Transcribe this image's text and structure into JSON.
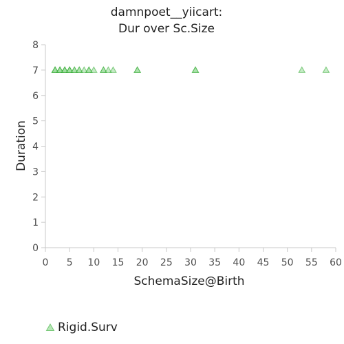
{
  "chart_data": {
    "type": "scatter",
    "title_lines": [
      "damnpoet__yiicart:",
      "Dur over Sc.Size"
    ],
    "xlabel": "SchemaSize@Birth",
    "ylabel": "Duration",
    "xlim": [
      0,
      60
    ],
    "ylim": [
      0,
      8
    ],
    "xticks": [
      0,
      5,
      10,
      15,
      20,
      25,
      30,
      35,
      40,
      45,
      50,
      55,
      60
    ],
    "yticks": [
      0,
      1,
      2,
      3,
      4,
      5,
      6,
      7,
      8
    ],
    "grid": false,
    "legend_position": "bottom-left",
    "series": [
      {
        "name": "Rigid.Surv",
        "marker": "triangle",
        "color": "#33aa33",
        "points": [
          {
            "x": 2,
            "y": 7
          },
          {
            "x": 2,
            "y": 7
          },
          {
            "x": 2,
            "y": 7
          },
          {
            "x": 3,
            "y": 7
          },
          {
            "x": 3,
            "y": 7
          },
          {
            "x": 3,
            "y": 7
          },
          {
            "x": 4,
            "y": 7
          },
          {
            "x": 4,
            "y": 7
          },
          {
            "x": 4,
            "y": 7
          },
          {
            "x": 5,
            "y": 7
          },
          {
            "x": 5,
            "y": 7
          },
          {
            "x": 5,
            "y": 7
          },
          {
            "x": 6,
            "y": 7
          },
          {
            "x": 6,
            "y": 7
          },
          {
            "x": 7,
            "y": 7
          },
          {
            "x": 7,
            "y": 7
          },
          {
            "x": 8,
            "y": 7
          },
          {
            "x": 9,
            "y": 7
          },
          {
            "x": 9,
            "y": 7
          },
          {
            "x": 10,
            "y": 7
          },
          {
            "x": 12,
            "y": 7
          },
          {
            "x": 12,
            "y": 7
          },
          {
            "x": 13,
            "y": 7
          },
          {
            "x": 14,
            "y": 7
          },
          {
            "x": 19,
            "y": 7
          },
          {
            "x": 19,
            "y": 7
          },
          {
            "x": 31,
            "y": 7
          },
          {
            "x": 31,
            "y": 7
          },
          {
            "x": 53,
            "y": 7
          },
          {
            "x": 58,
            "y": 7
          }
        ]
      }
    ]
  }
}
